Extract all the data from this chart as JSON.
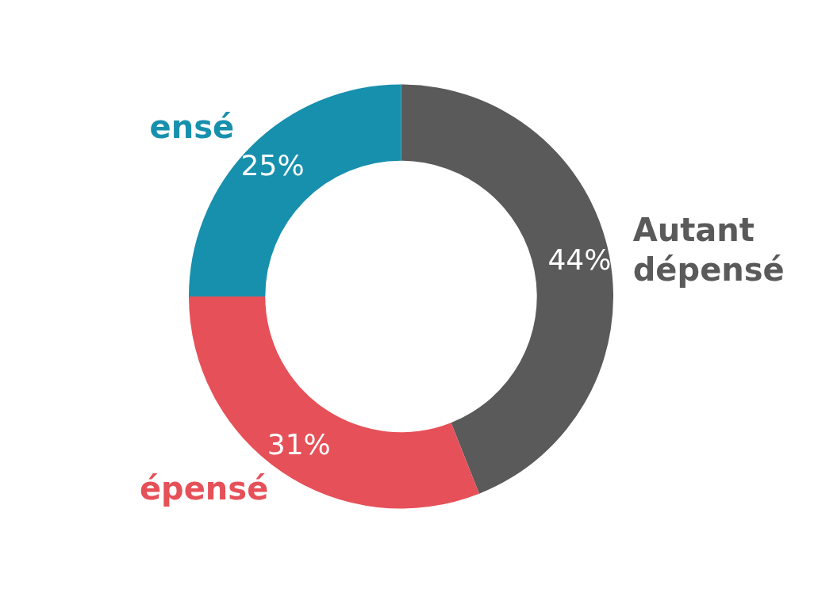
{
  "chart_data": {
    "type": "donut",
    "categories": [
      "Autant\ndépensé",
      "épensé",
      "ensé"
    ],
    "values": [
      44,
      31,
      25
    ],
    "value_labels": [
      "44%",
      "31%",
      "25%"
    ],
    "colors": [
      "#5a5a5a",
      "#e65058",
      "#1790ad"
    ],
    "legend": false
  }
}
